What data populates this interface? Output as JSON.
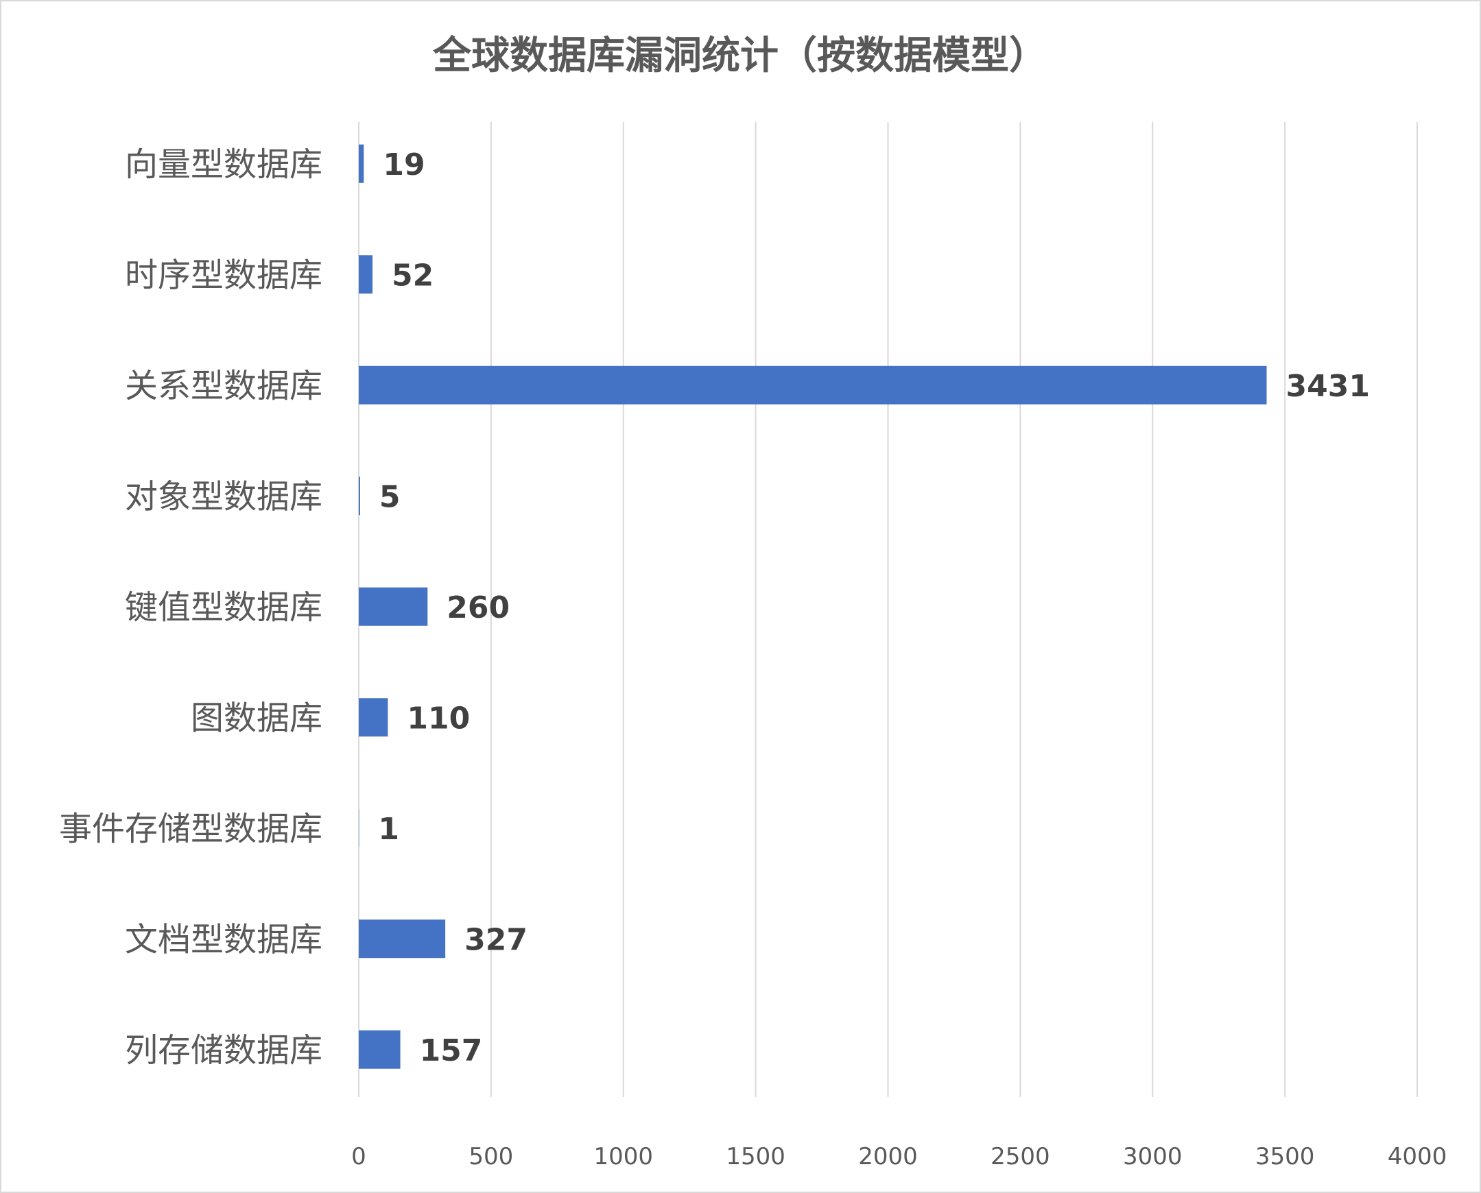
{
  "chart_data": {
    "type": "bar",
    "orientation": "horizontal",
    "title": "全球数据库漏洞统计（按数据模型）",
    "categories": [
      "向量型数据库",
      "时序型数据库",
      "关系型数据库",
      "对象型数据库",
      "键值型数据库",
      "图数据库",
      "事件存储型数据库",
      "文档型数据库",
      "列存储数据库"
    ],
    "values": [
      19,
      52,
      3431,
      5,
      260,
      110,
      1,
      327,
      157
    ],
    "xlim": [
      0,
      4000
    ],
    "ticks": [
      0,
      500,
      1000,
      1500,
      2000,
      2500,
      3000,
      3500,
      4000
    ],
    "grid": true,
    "legend": "none",
    "bar_color": "#4472c4"
  }
}
